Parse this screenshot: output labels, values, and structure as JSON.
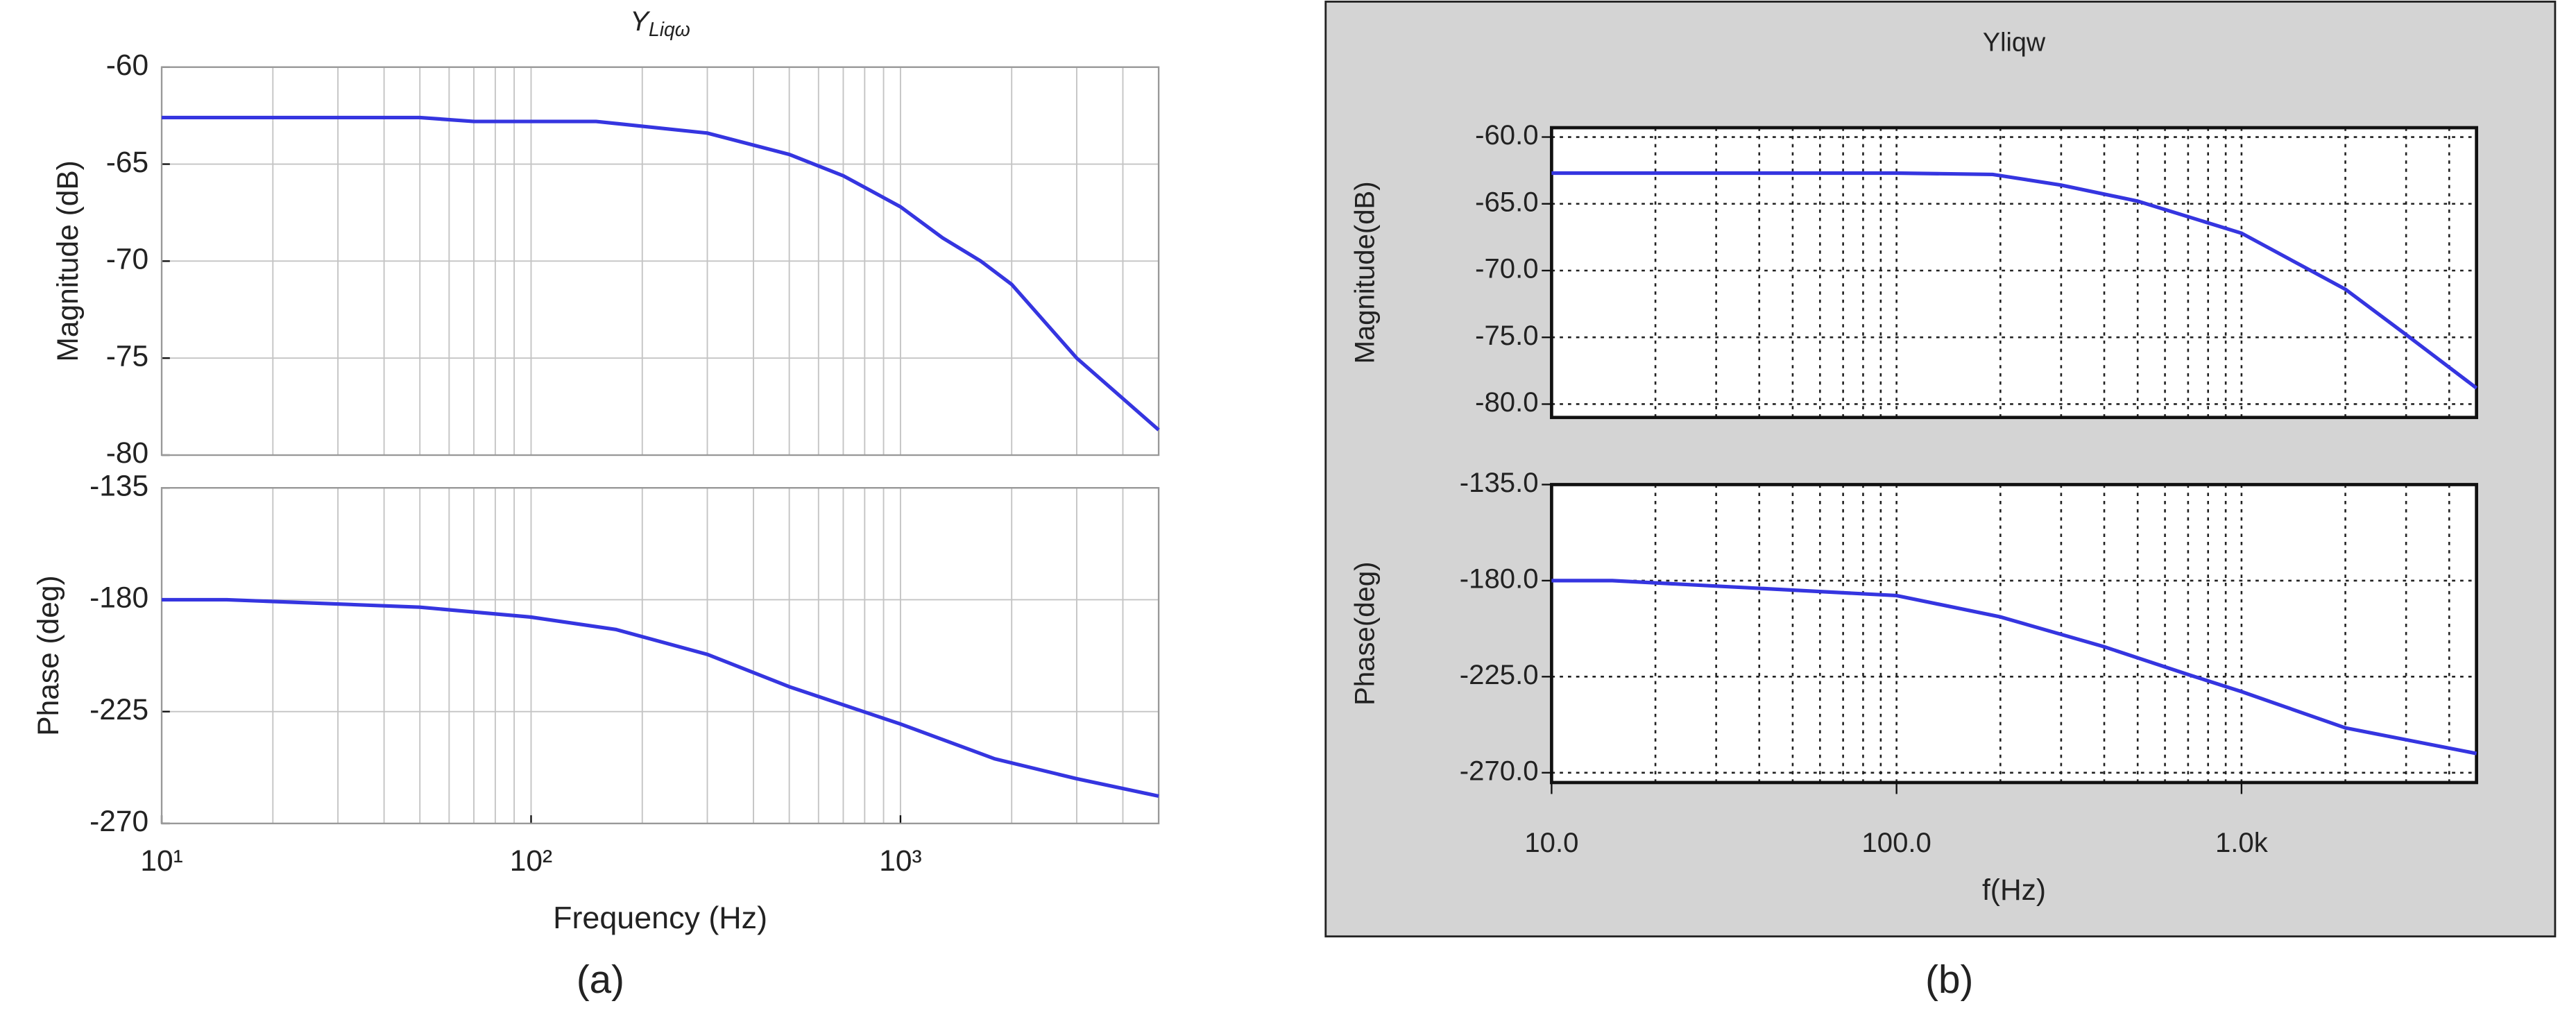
{
  "chart_data": [
    {
      "type": "line",
      "title": [
        "Y",
        "Liqω"
      ],
      "log_x": true,
      "grid": "solid",
      "grid_color": "#c4c4c4",
      "show_xtick_labels": false,
      "ylabel": "Magnitude (dB)",
      "x": [
        10,
        50,
        70,
        150,
        300,
        500,
        700,
        1000,
        1300,
        1650,
        2000,
        3000,
        5000
      ],
      "series": [
        {
          "color": "#3535e0",
          "values": [
            -62.6,
            -62.6,
            -62.8,
            -62.8,
            -63.4,
            -64.5,
            -65.6,
            -67.2,
            -68.8,
            -70,
            -71.2,
            -75,
            -78.7
          ]
        }
      ],
      "xlim": [
        10,
        5000
      ],
      "xticks": [
        10,
        100,
        1000
      ],
      "xminorticks": [
        20,
        30,
        40,
        50,
        60,
        70,
        80,
        90,
        200,
        300,
        400,
        500,
        600,
        700,
        800,
        900,
        2000,
        3000,
        4000
      ],
      "ylim": [
        -80,
        -60
      ],
      "yticks": [
        -60,
        -65,
        -70,
        -75,
        -80
      ]
    },
    {
      "type": "line",
      "log_x": true,
      "grid": "solid",
      "grid_color": "#c4c4c4",
      "show_xtick_labels": true,
      "ylabel": "Phase (deg)",
      "xlabel": "Frequency  (Hz)",
      "x": [
        10,
        15,
        50,
        100,
        170,
        300,
        500,
        1000,
        1800,
        3000,
        5000
      ],
      "series": [
        {
          "color": "#3535e0",
          "values": [
            -180,
            -180,
            -183,
            -187,
            -192,
            -202,
            -215,
            -230,
            -244,
            -252,
            -259
          ]
        }
      ],
      "xlim": [
        10,
        5000
      ],
      "xticks": [
        {
          "value": 10,
          "label": "10¹"
        },
        {
          "value": 100,
          "label": "10²"
        },
        {
          "value": 1000,
          "label": "10³"
        }
      ],
      "xminorticks": [
        20,
        30,
        40,
        50,
        60,
        70,
        80,
        90,
        200,
        300,
        400,
        500,
        600,
        700,
        800,
        900,
        2000,
        3000,
        4000
      ],
      "ylim": [
        -270,
        -135
      ],
      "yticks": [
        -135,
        -180,
        -225,
        -270
      ]
    },
    {
      "type": "line",
      "title": "Yliqw",
      "log_x": true,
      "grid": "dotted",
      "grid_color": "#222",
      "show_xtick_labels": false,
      "ylabel": "Magnitude(dB)",
      "x": [
        10,
        100,
        190,
        300,
        500,
        1000,
        2000,
        3000,
        4800
      ],
      "series": [
        {
          "color": "#3535e0",
          "values": [
            -62.7,
            -62.7,
            -62.8,
            -63.6,
            -64.8,
            -67.2,
            -71.4,
            -74.8,
            -78.8
          ]
        }
      ],
      "xlim": [
        10,
        4800
      ],
      "xticks": [
        10,
        100,
        1000
      ],
      "xminorticks": [
        20,
        30,
        40,
        50,
        60,
        70,
        80,
        90,
        200,
        300,
        400,
        500,
        600,
        700,
        800,
        900,
        2000,
        3000,
        4000
      ],
      "ylim": [
        -81,
        -59.3
      ],
      "yticks": [
        {
          "value": -60,
          "label": "-60.0"
        },
        {
          "value": -65,
          "label": "-65.0"
        },
        {
          "value": -70,
          "label": "-70.0"
        },
        {
          "value": -75,
          "label": "-75.0"
        },
        {
          "value": -80,
          "label": "-80.0"
        }
      ]
    },
    {
      "type": "line",
      "log_x": true,
      "grid": "dotted",
      "grid_color": "#222",
      "show_xtick_labels": true,
      "ylabel": "Phase(deg)",
      "xlabel": "f(Hz)",
      "x": [
        10,
        15,
        100,
        200,
        400,
        700,
        1000,
        2000,
        4800
      ],
      "series": [
        {
          "color": "#3535e0",
          "values": [
            -180,
            -180,
            -187,
            -197,
            -211,
            -224,
            -232,
            -249,
            -261
          ]
        }
      ],
      "xlim": [
        10,
        4800
      ],
      "xticks": [
        {
          "value": 10,
          "label": "10.0"
        },
        {
          "value": 100,
          "label": "100.0"
        },
        {
          "value": 1000,
          "label": "1.0k"
        }
      ],
      "xminorticks": [
        20,
        30,
        40,
        50,
        60,
        70,
        80,
        90,
        200,
        300,
        400,
        500,
        600,
        700,
        800,
        900,
        2000,
        3000,
        4000
      ],
      "ylim": [
        -274.6,
        -135
      ],
      "yticks": [
        {
          "value": -135,
          "label": "-135.0"
        },
        {
          "value": -180,
          "label": "-180.0"
        },
        {
          "value": -225,
          "label": "-225.0"
        },
        {
          "value": -270,
          "label": "-270.0"
        }
      ]
    }
  ],
  "captions": [
    "(a)",
    "(b)"
  ]
}
